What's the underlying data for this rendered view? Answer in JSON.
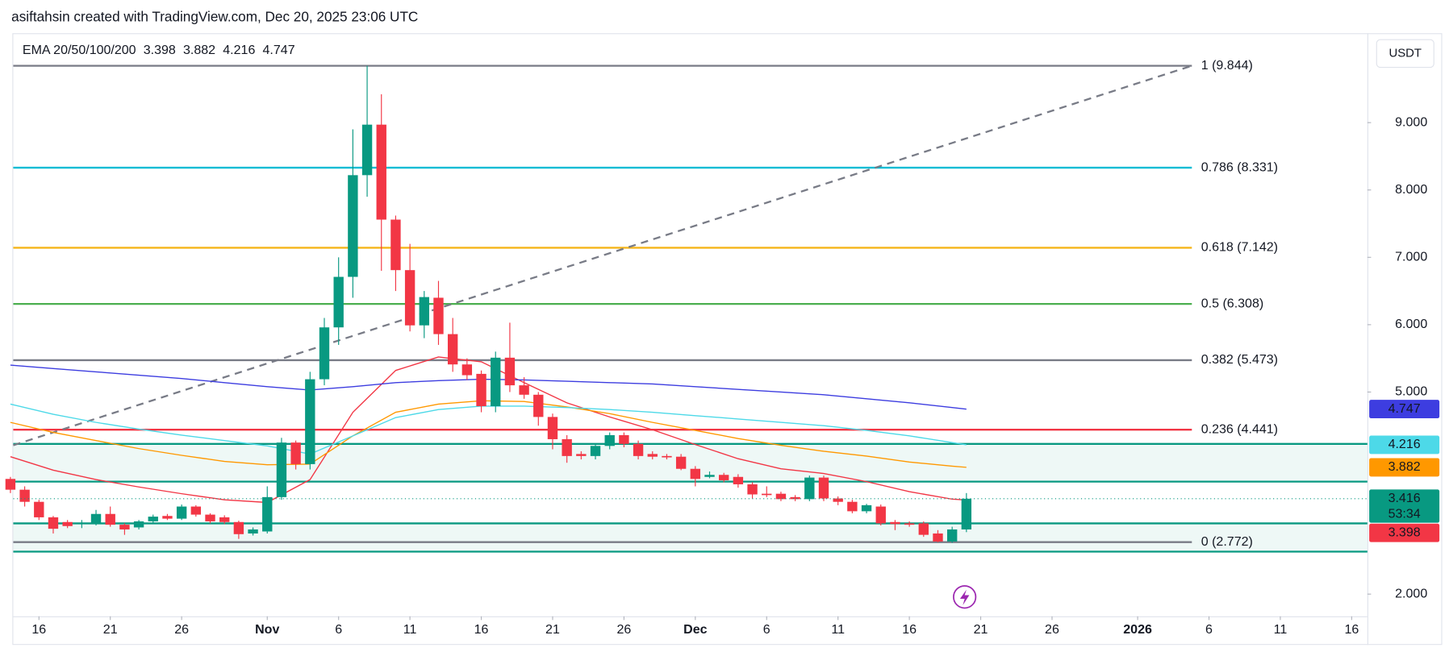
{
  "header": "asiftahsin created with TradingView.com, Dec 20, 2025 23:06 UTC",
  "chart_data": {
    "type": "candlestick",
    "currency": "USDT",
    "countdown": "53:34",
    "up_color": "#089981",
    "down_color": "#f23645",
    "x": [
      -2,
      -1,
      0,
      1,
      2,
      3,
      4,
      5,
      6,
      7,
      8,
      9,
      10,
      11,
      12,
      13,
      14,
      15,
      16,
      17,
      18,
      19,
      20,
      21,
      22,
      23,
      24,
      25,
      26,
      27,
      28,
      29,
      30,
      31,
      32,
      33,
      34,
      35,
      36,
      37,
      38,
      39,
      40,
      41,
      42,
      43,
      44,
      45,
      46,
      47,
      48,
      49,
      50,
      51,
      52,
      53,
      54,
      55,
      56,
      57,
      58,
      59,
      60,
      61,
      62,
      63,
      64,
      65
    ],
    "open": [
      3.71,
      3.55,
      3.37,
      3.14,
      3.07,
      3.05,
      3.05,
      3.19,
      3.03,
      2.99,
      3.08,
      3.16,
      3.12,
      3.3,
      3.18,
      3.14,
      3.07,
      2.9,
      2.93,
      3.44,
      4.25,
      3.93,
      5.19,
      5.96,
      6.71,
      8.22,
      8.97,
      7.56,
      6.81,
      5.99,
      6.4,
      5.86,
      5.41,
      5.27,
      4.79,
      5.51,
      5.1,
      4.96,
      4.63,
      4.3,
      4.08,
      4.05,
      4.2,
      4.36,
      4.23,
      4.08,
      4.05,
      4.04,
      3.86,
      3.74,
      3.77,
      3.74,
      3.63,
      3.49,
      3.49,
      3.44,
      3.41,
      3.73,
      3.42,
      3.37,
      3.23,
      3.3,
      3.07,
      3.05,
      3.05,
      2.9,
      2.78,
      2.96
    ],
    "high": [
      3.74,
      3.6,
      3.4,
      3.16,
      3.1,
      3.1,
      3.25,
      3.3,
      3.05,
      3.1,
      3.18,
      3.19,
      3.33,
      3.32,
      3.2,
      3.17,
      3.09,
      2.99,
      3.6,
      4.32,
      4.28,
      5.3,
      6.1,
      7.0,
      8.9,
      9.844,
      9.42,
      7.62,
      7.2,
      6.5,
      6.65,
      6.1,
      5.5,
      5.32,
      5.6,
      6.03,
      5.22,
      5.0,
      4.68,
      4.36,
      4.12,
      4.23,
      4.4,
      4.4,
      4.28,
      4.12,
      4.08,
      4.08,
      3.9,
      3.82,
      3.8,
      3.78,
      3.66,
      3.6,
      3.52,
      3.47,
      3.76,
      3.76,
      3.45,
      3.4,
      3.34,
      3.33,
      3.1,
      3.08,
      3.08,
      2.95,
      3.0,
      3.5
    ],
    "low": [
      3.5,
      3.3,
      3.1,
      2.9,
      2.98,
      2.98,
      3.02,
      3.0,
      2.88,
      2.96,
      3.05,
      3.1,
      3.1,
      3.15,
      3.05,
      3.04,
      2.82,
      2.87,
      2.9,
      3.4,
      3.85,
      3.85,
      5.1,
      5.7,
      6.4,
      7.9,
      6.8,
      6.5,
      5.9,
      5.8,
      5.7,
      5.3,
      5.18,
      4.7,
      4.7,
      5.0,
      4.9,
      4.5,
      4.15,
      3.95,
      4.0,
      4.0,
      4.15,
      4.18,
      4.0,
      4.0,
      4.0,
      3.84,
      3.6,
      3.72,
      3.66,
      3.58,
      3.42,
      3.44,
      3.38,
      3.38,
      3.38,
      3.38,
      3.32,
      3.2,
      3.2,
      3.02,
      2.95,
      3.0,
      2.85,
      2.77,
      2.76,
      2.92
    ],
    "close": [
      3.55,
      3.37,
      3.14,
      2.97,
      3.01,
      3.06,
      3.19,
      3.03,
      2.96,
      3.08,
      3.15,
      3.12,
      3.3,
      3.18,
      3.08,
      3.07,
      2.89,
      2.96,
      3.44,
      4.25,
      3.93,
      5.19,
      5.96,
      6.71,
      8.22,
      8.97,
      7.56,
      6.81,
      5.99,
      6.41,
      5.86,
      5.41,
      5.25,
      4.79,
      5.51,
      5.1,
      4.96,
      4.63,
      4.3,
      4.05,
      4.05,
      4.2,
      4.36,
      4.23,
      4.05,
      4.04,
      4.03,
      3.86,
      3.71,
      3.77,
      3.69,
      3.63,
      3.48,
      3.47,
      3.41,
      3.41,
      3.73,
      3.42,
      3.37,
      3.23,
      3.32,
      3.05,
      3.04,
      3.03,
      2.88,
      2.78,
      2.96,
      3.416
    ],
    "xlim": [
      -1.8,
      93.1
    ],
    "xticks": [
      {
        "value": 0,
        "label": "16"
      },
      {
        "value": 5,
        "label": "21"
      },
      {
        "value": 10,
        "label": "26"
      },
      {
        "value": 16,
        "label": "Nov"
      },
      {
        "value": 21,
        "label": "6"
      },
      {
        "value": 26,
        "label": "11"
      },
      {
        "value": 31,
        "label": "16"
      },
      {
        "value": 36,
        "label": "21"
      },
      {
        "value": 41,
        "label": "26"
      },
      {
        "value": 46,
        "label": "Dec"
      },
      {
        "value": 51,
        "label": "6"
      },
      {
        "value": 56,
        "label": "11"
      },
      {
        "value": 61,
        "label": "16"
      },
      {
        "value": 66,
        "label": "21"
      },
      {
        "value": 71,
        "label": "26"
      },
      {
        "value": 77,
        "label": "2026"
      },
      {
        "value": 82,
        "label": "6"
      },
      {
        "value": 87,
        "label": "11"
      },
      {
        "value": 92,
        "label": "16"
      }
    ],
    "ylim": [
      1.67,
      10.3
    ],
    "yticks": [
      {
        "value": 2,
        "label": "2.000"
      },
      {
        "value": 5,
        "label": "5.000"
      },
      {
        "value": 6,
        "label": "6.000"
      },
      {
        "value": 7,
        "label": "7.000"
      },
      {
        "value": 8,
        "label": "8.000"
      },
      {
        "value": 9,
        "label": "9.000"
      }
    ],
    "ema": {
      "name": "EMA 20/50/100/200",
      "x": [
        -2,
        1,
        4,
        7,
        10,
        13,
        16,
        19,
        22,
        25,
        28,
        31,
        34,
        37,
        40,
        43,
        46,
        49,
        52,
        55,
        58,
        61,
        64,
        65
      ],
      "series": [
        {
          "color": "#f23645",
          "values": [
            4.04,
            3.84,
            3.7,
            3.59,
            3.49,
            3.4,
            3.36,
            3.7,
            4.7,
            5.32,
            5.52,
            5.45,
            5.14,
            4.84,
            4.63,
            4.44,
            4.22,
            4.01,
            3.86,
            3.79,
            3.67,
            3.52,
            3.41,
            3.398
          ]
        },
        {
          "color": "#ff9800",
          "values": [
            4.55,
            4.4,
            4.28,
            4.16,
            4.06,
            3.97,
            3.92,
            3.93,
            4.35,
            4.7,
            4.82,
            4.87,
            4.86,
            4.78,
            4.68,
            4.55,
            4.43,
            4.31,
            4.21,
            4.12,
            4.05,
            3.96,
            3.9,
            3.882
          ]
        },
        {
          "color": "#4dd9e8",
          "values": [
            4.82,
            4.67,
            4.55,
            4.45,
            4.36,
            4.28,
            4.2,
            4.08,
            4.35,
            4.62,
            4.74,
            4.79,
            4.79,
            4.77,
            4.74,
            4.7,
            4.65,
            4.6,
            4.55,
            4.5,
            4.43,
            4.35,
            4.25,
            4.216
          ]
        },
        {
          "color": "#3d3de0",
          "values": [
            5.4,
            5.35,
            5.3,
            5.25,
            5.2,
            5.14,
            5.08,
            5.03,
            5.08,
            5.14,
            5.17,
            5.19,
            5.18,
            5.16,
            5.14,
            5.12,
            5.08,
            5.04,
            5.0,
            4.96,
            4.9,
            4.84,
            4.77,
            4.747
          ]
        }
      ]
    },
    "fib": {
      "x": [
        -1.8,
        80.8
      ],
      "y": [
        4.21,
        9.844
      ],
      "levels": [
        {
          "value": 9.844,
          "label": "1 (9.844)",
          "color": "#787b86"
        },
        {
          "value": 8.331,
          "label": "0.786 (8.331)",
          "color": "#00bcd4"
        },
        {
          "value": 7.142,
          "label": "0.618 (7.142)",
          "color": "#f5b51a"
        },
        {
          "value": 6.308,
          "label": "0.5 (6.308)",
          "color": "#4caf50"
        },
        {
          "value": 5.473,
          "label": "0.382 (5.473)",
          "color": "#787b86"
        },
        {
          "value": 4.441,
          "label": "0.236 (4.441)",
          "color": "#f23645"
        },
        {
          "value": 2.772,
          "label": "0 (2.772)",
          "color": "#787b86"
        }
      ]
    },
    "zone_color": "#089981",
    "zones": [
      {
        "top": 4.23,
        "bottom": 3.67
      },
      {
        "top": 3.05,
        "bottom": 2.63
      }
    ]
  }
}
